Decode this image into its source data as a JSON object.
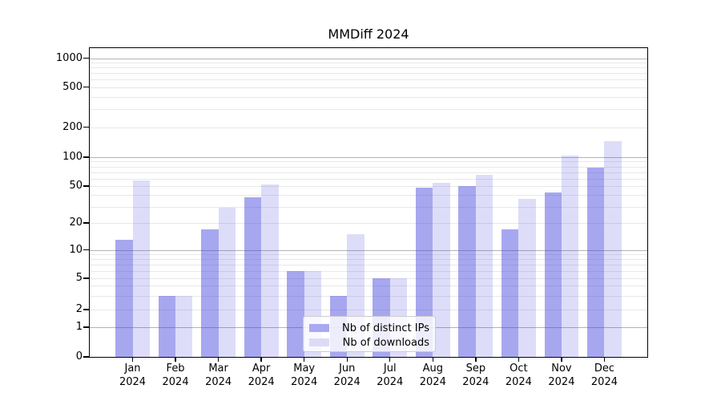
{
  "figure": {
    "background": "#ffffff",
    "axes_edge_color": "#000000",
    "major_grid_color": "#b3b3b3",
    "minor_grid_color": "#e8e8e8"
  },
  "chart_data": {
    "type": "bar",
    "title": "MMDiff 2024",
    "xlabel": "",
    "ylabel": "",
    "categories": [
      "Jan",
      "Feb",
      "Mar",
      "Apr",
      "May",
      "Jun",
      "Jul",
      "Aug",
      "Sep",
      "Oct",
      "Nov",
      "Dec"
    ],
    "category_year_line": "2024",
    "series": [
      {
        "name": "Nb of distinct IPs",
        "fill": "rgba(64,64,220,0.46)",
        "legend_swatch": "#a9a9f2",
        "values": [
          13,
          3,
          17,
          38,
          6,
          3,
          5,
          48,
          50,
          17,
          43,
          78
        ]
      },
      {
        "name": "Nb of downloads",
        "fill": "rgba(64,64,220,0.18)",
        "legend_swatch": "#dbdbf8",
        "values": [
          57,
          3,
          29,
          52,
          6,
          15,
          5,
          54,
          65,
          36,
          103,
          145
        ]
      }
    ],
    "y_ticks": [
      0,
      1,
      2,
      5,
      10,
      20,
      50,
      100,
      200,
      500,
      1000
    ],
    "y_major_grid_at": [
      1,
      10,
      100,
      1000
    ],
    "y_scale": "symlog-like (linear below 1, logarithmic above)",
    "ylim": [
      0,
      1000
    ],
    "grid": "major and minor horizontal gridlines",
    "legend_position": "lower center"
  }
}
